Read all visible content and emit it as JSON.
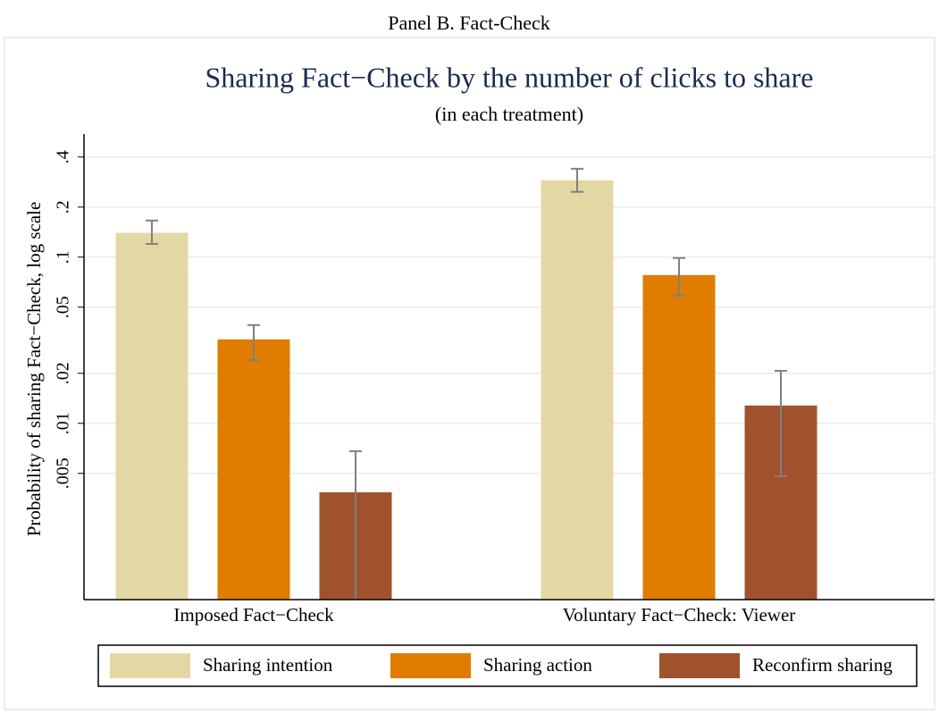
{
  "chart_data": {
    "type": "bar",
    "panel_label": "Panel B. Fact-Check",
    "title": "Sharing Fact−Check by the number of clicks to share",
    "subtitle": "(in each treatment)",
    "y_label": "Probability of sharing Fact−Check, log scale",
    "categories": [
      "Imposed Fact−Check",
      "Voluntary Fact−Check: Viewer"
    ],
    "log_scale": true,
    "grid": true,
    "legend": "bottom",
    "ylim": [
      0.00087,
      0.55
    ],
    "yticks": [
      {
        "value": 0.005,
        "label": ".005"
      },
      {
        "value": 0.01,
        "label": ".01"
      },
      {
        "value": 0.02,
        "label": ".02"
      },
      {
        "value": 0.05,
        "label": ".05"
      },
      {
        "value": 0.1,
        "label": ".1"
      },
      {
        "value": 0.2,
        "label": ".2"
      },
      {
        "value": 0.4,
        "label": ".4"
      }
    ],
    "series": [
      {
        "name": "Sharing intention",
        "color": "#e3d8a3",
        "values": [
          0.14,
          0.29
        ],
        "error_low": [
          0.12,
          0.247
        ],
        "error_high": [
          0.166,
          0.34
        ]
      },
      {
        "name": "Sharing action",
        "color": "#e07c00",
        "values": [
          0.032,
          0.078
        ],
        "error_low": [
          0.024,
          0.0587
        ],
        "error_high": [
          0.039,
          0.0988
        ]
      },
      {
        "name": "Reconfirm sharing",
        "color": "#a0522d",
        "values": [
          0.00385,
          0.0128
        ],
        "error_low": [
          0.0008,
          0.0048
        ],
        "error_high": [
          0.0068,
          0.0207
        ]
      }
    ]
  }
}
